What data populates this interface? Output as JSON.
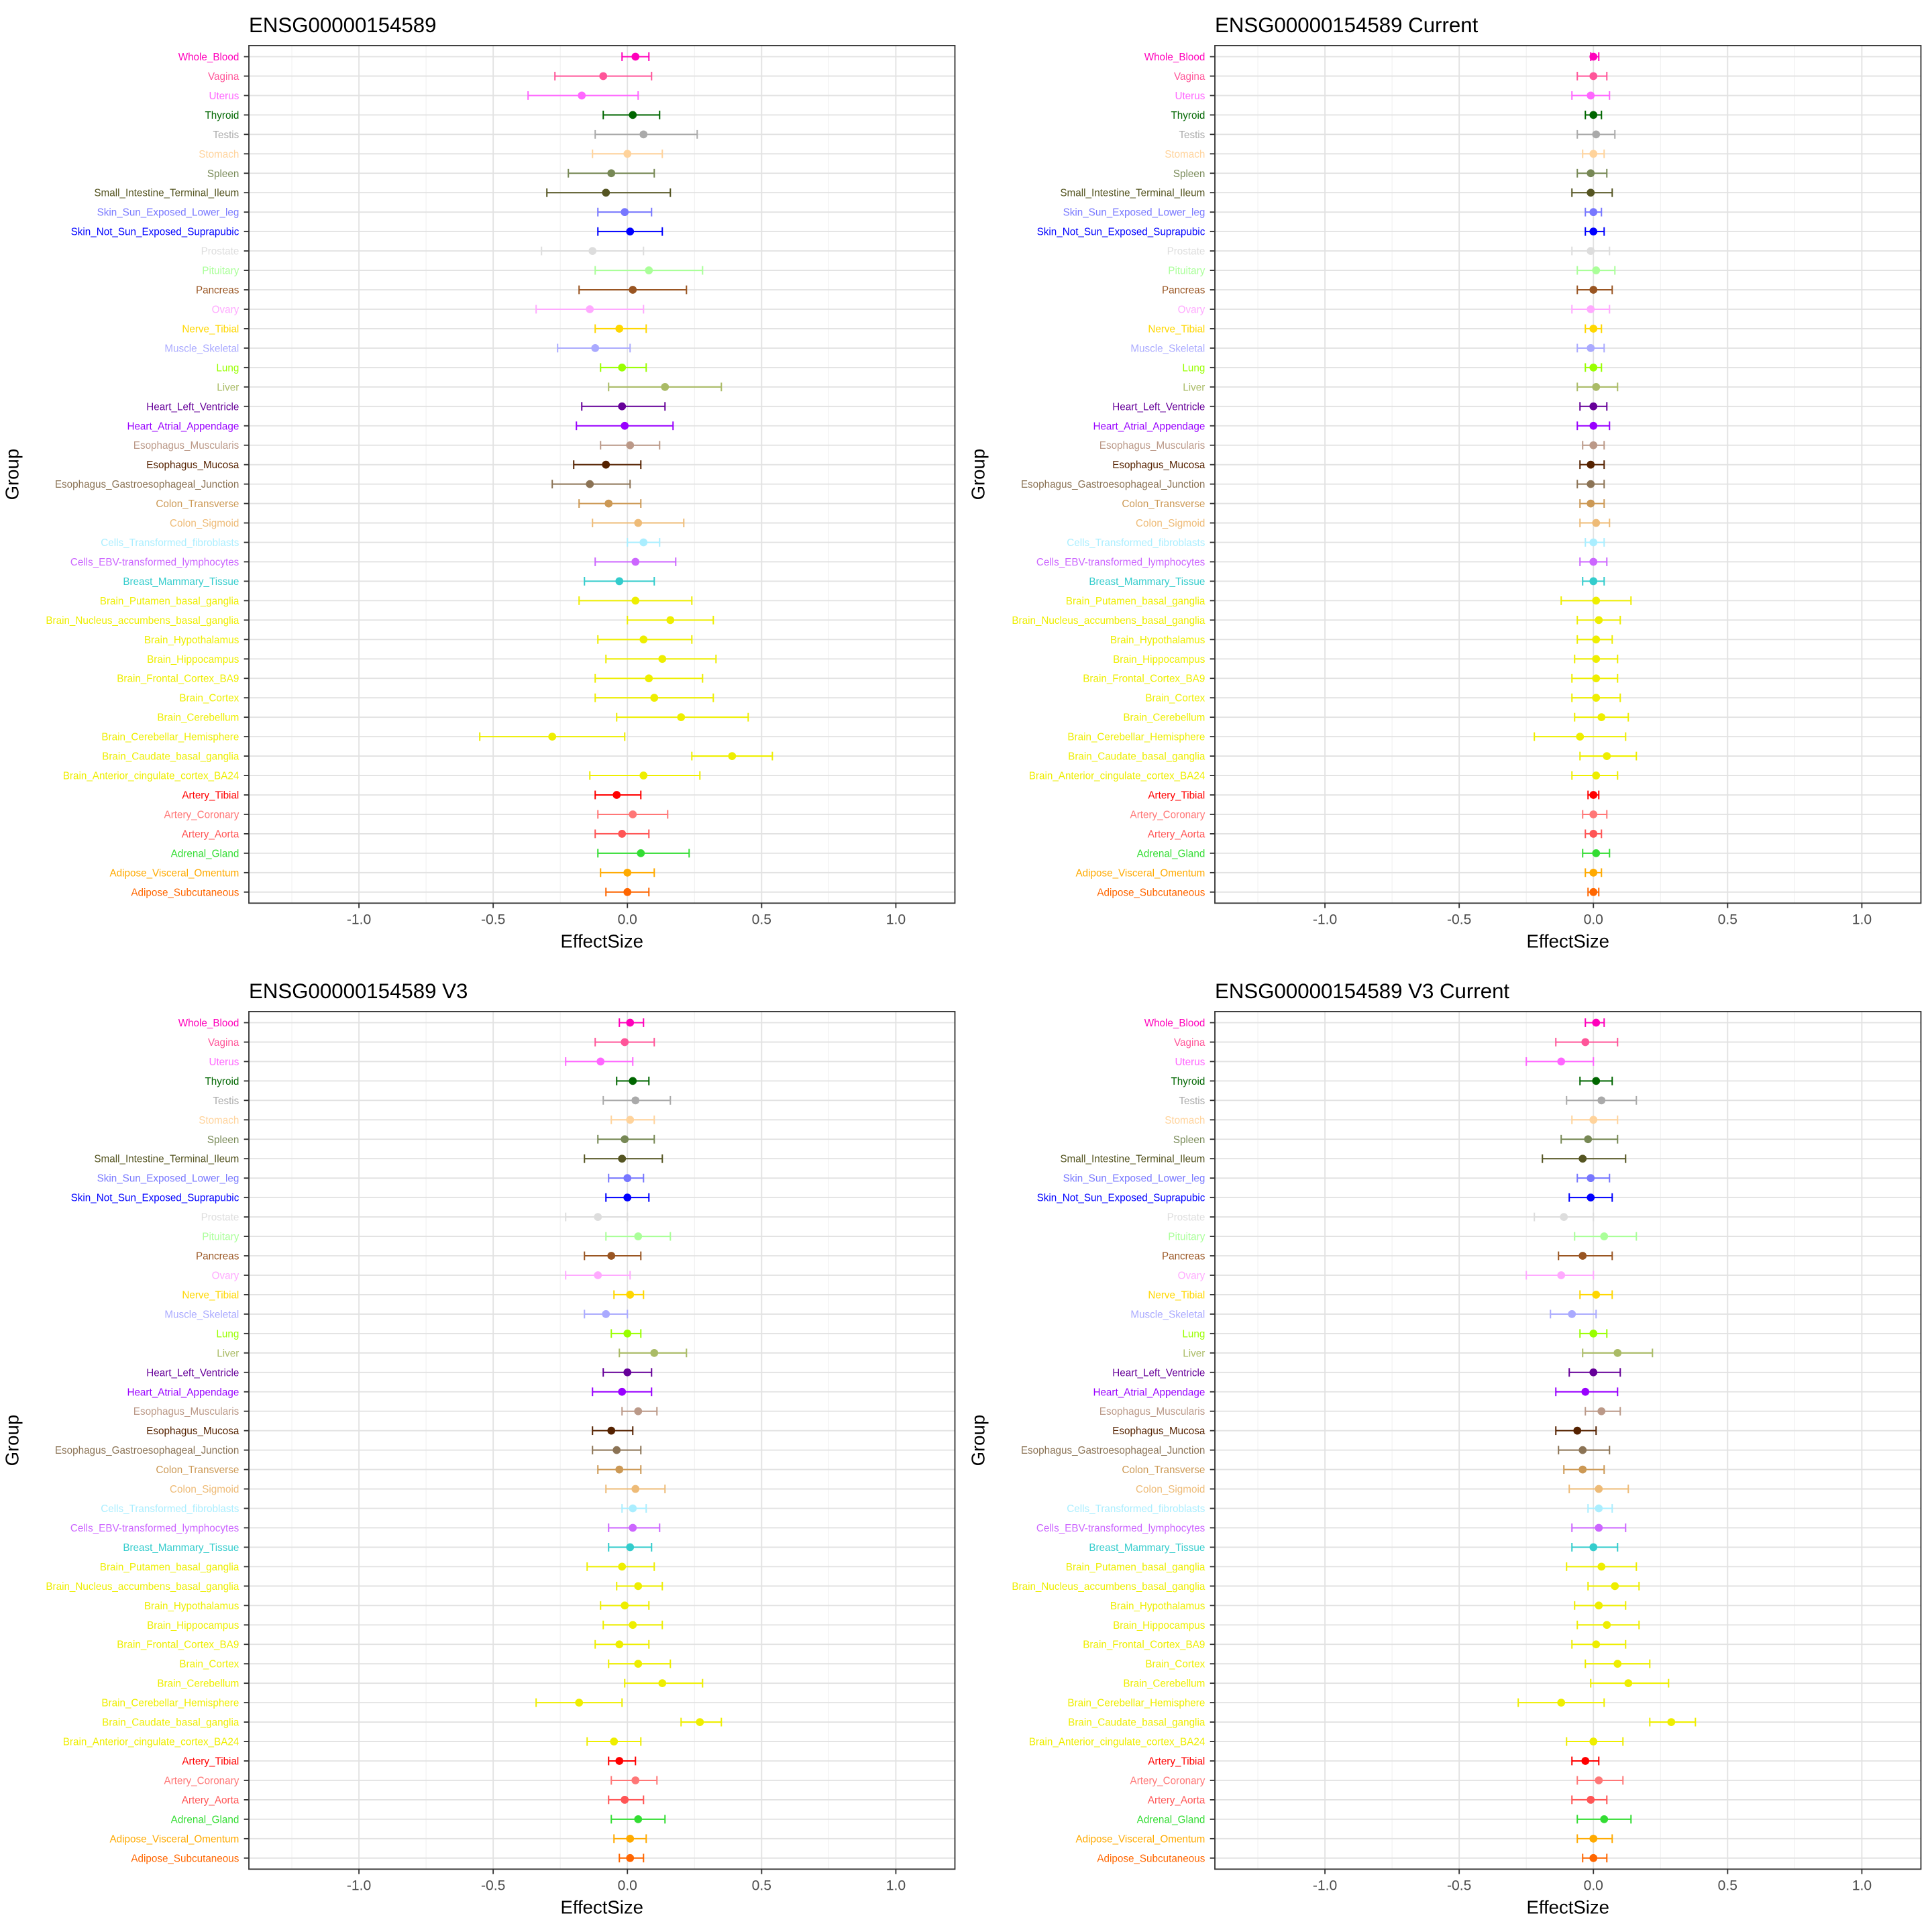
{
  "chart_data": {
    "type": "forest",
    "xlabel": "EffectSize",
    "ylabel": "Group",
    "xlim": [
      -1.41,
      1.22
    ],
    "xticks": [
      -1.0,
      -0.5,
      0.0,
      0.5,
      1.0
    ],
    "xtick_labels": [
      "-1.0",
      "-0.5",
      "0.0",
      "0.5",
      "1.0"
    ],
    "grid": true,
    "groups": [
      "Whole_Blood",
      "Vagina",
      "Uterus",
      "Thyroid",
      "Testis",
      "Stomach",
      "Spleen",
      "Small_Intestine_Terminal_Ileum",
      "Skin_Sun_Exposed_Lower_leg",
      "Skin_Not_Sun_Exposed_Suprapubic",
      "Prostate",
      "Pituitary",
      "Pancreas",
      "Ovary",
      "Nerve_Tibial",
      "Muscle_Skeletal",
      "Lung",
      "Liver",
      "Heart_Left_Ventricle",
      "Heart_Atrial_Appendage",
      "Esophagus_Muscularis",
      "Esophagus_Mucosa",
      "Esophagus_Gastroesophageal_Junction",
      "Colon_Transverse",
      "Colon_Sigmoid",
      "Cells_Transformed_fibroblasts",
      "Cells_EBV-transformed_lymphocytes",
      "Breast_Mammary_Tissue",
      "Brain_Putamen_basal_ganglia",
      "Brain_Nucleus_accumbens_basal_ganglia",
      "Brain_Hypothalamus",
      "Brain_Hippocampus",
      "Brain_Frontal_Cortex_BA9",
      "Brain_Cortex",
      "Brain_Cerebellum",
      "Brain_Cerebellar_Hemisphere",
      "Brain_Caudate_basal_ganglia",
      "Brain_Anterior_cingulate_cortex_BA24",
      "Artery_Tibial",
      "Artery_Coronary",
      "Artery_Aorta",
      "Adrenal_Gland",
      "Adipose_Visceral_Omentum",
      "Adipose_Subcutaneous"
    ],
    "colors": [
      "#FF00BB",
      "#FF5599",
      "#FF66FF",
      "#006600",
      "#AAAAAA",
      "#FFD39B",
      "#778855",
      "#555522",
      "#7777FF",
      "#0000FF",
      "#DDDDDD",
      "#AAFF99",
      "#995522",
      "#FFAAFF",
      "#FFD700",
      "#AAAAFF",
      "#99FF00",
      "#AABB66",
      "#660099",
      "#9900FF",
      "#BB9988",
      "#552200",
      "#8B7355",
      "#CC9955",
      "#EEBB77",
      "#AAEEFF",
      "#CC66FF",
      "#33CCCC",
      "#EEEE00",
      "#EEEE00",
      "#EEEE00",
      "#EEEE00",
      "#EEEE00",
      "#EEEE00",
      "#EEEE00",
      "#EEEE00",
      "#EEEE00",
      "#EEEE00",
      "#FF0000",
      "#FF7777",
      "#FF5555",
      "#33DD33",
      "#FFAA00",
      "#FF6600"
    ],
    "panels": [
      {
        "title": "ENSG00000154589",
        "values": [
          [
            0.03,
            -0.02,
            0.08
          ],
          [
            -0.09,
            -0.27,
            0.09
          ],
          [
            -0.17,
            -0.37,
            0.04
          ],
          [
            0.02,
            -0.09,
            0.12
          ],
          [
            0.06,
            -0.12,
            0.26
          ],
          [
            0,
            -0.13,
            0.13
          ],
          [
            -0.06,
            -0.22,
            0.1
          ],
          [
            -0.08,
            -0.3,
            0.16
          ],
          [
            -0.01,
            -0.11,
            0.09
          ],
          [
            0.01,
            -0.11,
            0.13
          ],
          [
            -0.13,
            -0.32,
            0.06
          ],
          [
            0.08,
            -0.12,
            0.28
          ],
          [
            0.02,
            -0.18,
            0.22
          ],
          [
            -0.14,
            -0.34,
            0.06
          ],
          [
            -0.03,
            -0.12,
            0.07
          ],
          [
            -0.12,
            -0.26,
            0.01
          ],
          [
            -0.02,
            -0.1,
            0.07
          ],
          [
            0.14,
            -0.07,
            0.35
          ],
          [
            -0.02,
            -0.17,
            0.14
          ],
          [
            -0.01,
            -0.19,
            0.17
          ],
          [
            0.01,
            -0.1,
            0.12
          ],
          [
            -0.08,
            -0.2,
            0.05
          ],
          [
            -0.14,
            -0.28,
            0.01
          ],
          [
            -0.07,
            -0.18,
            0.05
          ],
          [
            0.04,
            -0.13,
            0.21
          ],
          [
            0.06,
            0,
            0.12
          ],
          [
            0.03,
            -0.12,
            0.18
          ],
          [
            -0.03,
            -0.16,
            0.1
          ],
          [
            0.03,
            -0.18,
            0.24
          ],
          [
            0.16,
            0,
            0.32
          ],
          [
            0.06,
            -0.11,
            0.24
          ],
          [
            0.13,
            -0.08,
            0.33
          ],
          [
            0.08,
            -0.12,
            0.28
          ],
          [
            0.1,
            -0.12,
            0.32
          ],
          [
            0.2,
            -0.04,
            0.45
          ],
          [
            -0.28,
            -0.55,
            -0.01
          ],
          [
            0.39,
            0.24,
            0.54
          ],
          [
            0.06,
            -0.14,
            0.27
          ],
          [
            -0.04,
            -0.12,
            0.05
          ],
          [
            0.02,
            -0.11,
            0.15
          ],
          [
            -0.02,
            -0.12,
            0.08
          ],
          [
            0.05,
            -0.11,
            0.23
          ],
          [
            0,
            -0.1,
            0.1
          ],
          [
            0,
            -0.08,
            0.08
          ]
        ]
      },
      {
        "title": "ENSG00000154589 Current",
        "values": [
          [
            0,
            -0.01,
            0.02
          ],
          [
            0,
            -0.06,
            0.05
          ],
          [
            -0.01,
            -0.08,
            0.06
          ],
          [
            0,
            -0.03,
            0.03
          ],
          [
            0.01,
            -0.06,
            0.08
          ],
          [
            0,
            -0.04,
            0.04
          ],
          [
            -0.01,
            -0.06,
            0.05
          ],
          [
            -0.01,
            -0.08,
            0.07
          ],
          [
            0,
            -0.03,
            0.03
          ],
          [
            0,
            -0.03,
            0.04
          ],
          [
            -0.01,
            -0.08,
            0.06
          ],
          [
            0.01,
            -0.06,
            0.08
          ],
          [
            0,
            -0.06,
            0.07
          ],
          [
            -0.01,
            -0.08,
            0.06
          ],
          [
            0,
            -0.03,
            0.03
          ],
          [
            -0.01,
            -0.06,
            0.04
          ],
          [
            0,
            -0.03,
            0.03
          ],
          [
            0.01,
            -0.06,
            0.09
          ],
          [
            0,
            -0.05,
            0.05
          ],
          [
            0,
            -0.06,
            0.06
          ],
          [
            0,
            -0.04,
            0.04
          ],
          [
            -0.01,
            -0.05,
            0.04
          ],
          [
            -0.01,
            -0.06,
            0.04
          ],
          [
            -0.01,
            -0.05,
            0.04
          ],
          [
            0.01,
            -0.05,
            0.06
          ],
          [
            0,
            -0.03,
            0.04
          ],
          [
            0,
            -0.05,
            0.05
          ],
          [
            0,
            -0.04,
            0.04
          ],
          [
            0.01,
            -0.12,
            0.14
          ],
          [
            0.02,
            -0.06,
            0.1
          ],
          [
            0.01,
            -0.06,
            0.07
          ],
          [
            0.01,
            -0.07,
            0.09
          ],
          [
            0.01,
            -0.08,
            0.09
          ],
          [
            0.01,
            -0.08,
            0.1
          ],
          [
            0.03,
            -0.07,
            0.13
          ],
          [
            -0.05,
            -0.22,
            0.12
          ],
          [
            0.05,
            -0.05,
            0.16
          ],
          [
            0.01,
            -0.08,
            0.09
          ],
          [
            0,
            -0.02,
            0.02
          ],
          [
            0,
            -0.04,
            0.05
          ],
          [
            0,
            -0.03,
            0.03
          ],
          [
            0.01,
            -0.04,
            0.06
          ],
          [
            0,
            -0.03,
            0.03
          ],
          [
            0,
            -0.02,
            0.02
          ]
        ]
      },
      {
        "title": "ENSG00000154589 V3",
        "values": [
          [
            0.01,
            -0.03,
            0.06
          ],
          [
            -0.01,
            -0.12,
            0.1
          ],
          [
            -0.1,
            -0.23,
            0.02
          ],
          [
            0.02,
            -0.04,
            0.08
          ],
          [
            0.03,
            -0.09,
            0.16
          ],
          [
            0.01,
            -0.06,
            0.1
          ],
          [
            -0.01,
            -0.11,
            0.1
          ],
          [
            -0.02,
            -0.16,
            0.13
          ],
          [
            0,
            -0.07,
            0.06
          ],
          [
            0,
            -0.08,
            0.08
          ],
          [
            -0.11,
            -0.23,
            0
          ],
          [
            0.04,
            -0.08,
            0.16
          ],
          [
            -0.06,
            -0.16,
            0.05
          ],
          [
            -0.11,
            -0.23,
            0.01
          ],
          [
            0.01,
            -0.05,
            0.06
          ],
          [
            -0.08,
            -0.16,
            0
          ],
          [
            0,
            -0.06,
            0.05
          ],
          [
            0.1,
            -0.03,
            0.22
          ],
          [
            0,
            -0.09,
            0.09
          ],
          [
            -0.02,
            -0.13,
            0.09
          ],
          [
            0.04,
            -0.02,
            0.11
          ],
          [
            -0.06,
            -0.13,
            0.02
          ],
          [
            -0.04,
            -0.13,
            0.05
          ],
          [
            -0.03,
            -0.11,
            0.05
          ],
          [
            0.03,
            -0.08,
            0.14
          ],
          [
            0.02,
            -0.02,
            0.07
          ],
          [
            0.02,
            -0.07,
            0.12
          ],
          [
            0.01,
            -0.07,
            0.09
          ],
          [
            -0.02,
            -0.15,
            0.1
          ],
          [
            0.04,
            -0.04,
            0.13
          ],
          [
            -0.01,
            -0.1,
            0.08
          ],
          [
            0.02,
            -0.09,
            0.13
          ],
          [
            -0.03,
            -0.12,
            0.08
          ],
          [
            0.04,
            -0.07,
            0.16
          ],
          [
            0.13,
            -0.01,
            0.28
          ],
          [
            -0.18,
            -0.34,
            -0.02
          ],
          [
            0.27,
            0.2,
            0.35
          ],
          [
            -0.05,
            -0.15,
            0.05
          ],
          [
            -0.03,
            -0.07,
            0.03
          ],
          [
            0.03,
            -0.06,
            0.11
          ],
          [
            -0.01,
            -0.07,
            0.06
          ],
          [
            0.04,
            -0.06,
            0.14
          ],
          [
            0.01,
            -0.05,
            0.07
          ],
          [
            0.01,
            -0.03,
            0.06
          ]
        ]
      },
      {
        "title": "ENSG00000154589 V3 Current",
        "values": [
          [
            0.01,
            -0.03,
            0.04
          ],
          [
            -0.03,
            -0.14,
            0.09
          ],
          [
            -0.12,
            -0.25,
            0
          ],
          [
            0.01,
            -0.05,
            0.07
          ],
          [
            0.03,
            -0.1,
            0.16
          ],
          [
            0,
            -0.08,
            0.09
          ],
          [
            -0.02,
            -0.12,
            0.09
          ],
          [
            -0.04,
            -0.19,
            0.12
          ],
          [
            -0.01,
            -0.06,
            0.06
          ],
          [
            -0.01,
            -0.09,
            0.07
          ],
          [
            -0.11,
            -0.22,
            0
          ],
          [
            0.04,
            -0.07,
            0.16
          ],
          [
            -0.04,
            -0.13,
            0.07
          ],
          [
            -0.12,
            -0.25,
            0
          ],
          [
            0.01,
            -0.05,
            0.07
          ],
          [
            -0.08,
            -0.16,
            0.01
          ],
          [
            0,
            -0.05,
            0.05
          ],
          [
            0.09,
            -0.04,
            0.22
          ],
          [
            0,
            -0.09,
            0.1
          ],
          [
            -0.03,
            -0.14,
            0.09
          ],
          [
            0.03,
            -0.03,
            0.1
          ],
          [
            -0.06,
            -0.14,
            0.01
          ],
          [
            -0.04,
            -0.13,
            0.06
          ],
          [
            -0.04,
            -0.11,
            0.04
          ],
          [
            0.02,
            -0.09,
            0.13
          ],
          [
            0.02,
            -0.02,
            0.07
          ],
          [
            0.02,
            -0.08,
            0.12
          ],
          [
            0,
            -0.08,
            0.09
          ],
          [
            0.03,
            -0.1,
            0.16
          ],
          [
            0.08,
            -0.02,
            0.17
          ],
          [
            0.02,
            -0.07,
            0.12
          ],
          [
            0.05,
            -0.06,
            0.17
          ],
          [
            0.01,
            -0.08,
            0.12
          ],
          [
            0.09,
            -0.03,
            0.21
          ],
          [
            0.13,
            -0.01,
            0.28
          ],
          [
            -0.12,
            -0.28,
            0.04
          ],
          [
            0.29,
            0.21,
            0.38
          ],
          [
            0,
            -0.1,
            0.11
          ],
          [
            -0.03,
            -0.08,
            0.02
          ],
          [
            0.02,
            -0.06,
            0.11
          ],
          [
            -0.01,
            -0.08,
            0.05
          ],
          [
            0.04,
            -0.06,
            0.14
          ],
          [
            0,
            -0.06,
            0.07
          ],
          [
            0,
            -0.04,
            0.05
          ]
        ]
      }
    ]
  }
}
